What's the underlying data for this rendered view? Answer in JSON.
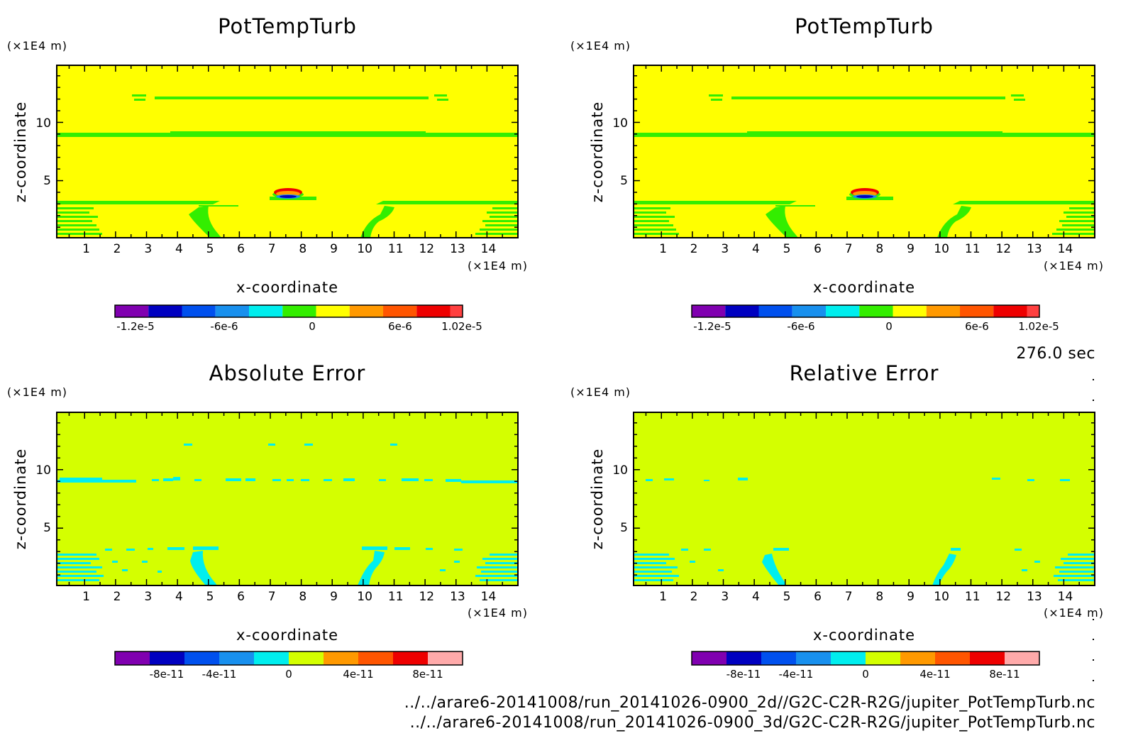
{
  "colors": {
    "top_background": "#ffff00",
    "bottom_background": "#d4ff00",
    "band_green": "#33ee00",
    "band_cyan": "#00eeee",
    "colorbar_top": [
      "#8000b0",
      "#0000c0",
      "#0050ee",
      "#1890ee",
      "#00eeee",
      "#33ee00",
      "#ffff00",
      "#ff9900",
      "#ff5500",
      "#ee0000",
      "#ff4040"
    ],
    "colorbar_bottom": [
      "#8000b0",
      "#0000c0",
      "#0050ee",
      "#1890ee",
      "#00eeee",
      "#d4ff00",
      "#ff9900",
      "#ff5500",
      "#ee0000",
      "#ffaaaa"
    ]
  },
  "chart_data": [
    {
      "type": "heatmap",
      "title": "PotTempTurb",
      "xlabel": "x-coordinate",
      "ylabel": "z-coordinate",
      "x_unit": "(×1E4 m)",
      "y_unit": "(×1E4 m)",
      "xlim": [
        0.1,
        15.0
      ],
      "ylim": [
        0.1,
        14.9
      ],
      "xticks": [
        "1",
        "2",
        "3",
        "4",
        "5",
        "6",
        "7",
        "8",
        "9",
        "10",
        "11",
        "12",
        "13",
        "14"
      ],
      "yticks": [
        "5",
        "10"
      ],
      "background_value": 0,
      "colorbar_labels": [
        "-1.2e-5",
        "-6e-6",
        "0",
        "6e-6",
        "1.02e-5"
      ]
    },
    {
      "type": "heatmap",
      "title": "PotTempTurb",
      "xlabel": "x-coordinate",
      "ylabel": "z-coordinate",
      "x_unit": "(×1E4 m)",
      "y_unit": "(×1E4 m)",
      "xlim": [
        0.1,
        15.0
      ],
      "ylim": [
        0.1,
        14.9
      ],
      "xticks": [
        "1",
        "2",
        "3",
        "4",
        "5",
        "6",
        "7",
        "8",
        "9",
        "10",
        "11",
        "12",
        "13",
        "14"
      ],
      "yticks": [
        "5",
        "10"
      ],
      "background_value": 0,
      "colorbar_labels": [
        "-1.2e-5",
        "-6e-6",
        "0",
        "6e-6",
        "1.02e-5"
      ]
    },
    {
      "type": "heatmap",
      "title": "Absolute Error",
      "xlabel": "x-coordinate",
      "ylabel": "z-coordinate",
      "x_unit": "(×1E4 m)",
      "y_unit": "(×1E4 m)",
      "xlim": [
        0.1,
        15.0
      ],
      "ylim": [
        0.1,
        14.9
      ],
      "xticks": [
        "1",
        "2",
        "3",
        "4",
        "5",
        "6",
        "7",
        "8",
        "9",
        "10",
        "11",
        "12",
        "13",
        "14"
      ],
      "yticks": [
        "5",
        "10"
      ],
      "background_value": 0,
      "colorbar_labels": [
        "-8e-11",
        "-4e-11",
        "0",
        "4e-11",
        "8e-11"
      ]
    },
    {
      "type": "heatmap",
      "title": "Relative Error",
      "xlabel": "x-coordinate",
      "ylabel": "z-coordinate",
      "x_unit": "(×1E4 m)",
      "y_unit": "(×1E4 m)",
      "xlim": [
        0.1,
        15.0
      ],
      "ylim": [
        0.1,
        14.9
      ],
      "xticks": [
        "1",
        "2",
        "3",
        "4",
        "5",
        "6",
        "7",
        "8",
        "9",
        "10",
        "11",
        "12",
        "13",
        "14"
      ],
      "yticks": [
        "5",
        "10"
      ],
      "background_value": 0,
      "colorbar_labels": [
        "-8e-11",
        "-4e-11",
        "0",
        "4e-11",
        "8e-11"
      ]
    }
  ],
  "time_label": "276.0 sec",
  "file_paths": [
    "../../arare6-20141008/run_20141026-0900_2d//G2C-C2R-R2G/jupiter_PotTempTurb.nc",
    "../../arare6-20141008/run_20141026-0900_3d/G2C-C2R-R2G/jupiter_PotTempTurb.nc"
  ]
}
